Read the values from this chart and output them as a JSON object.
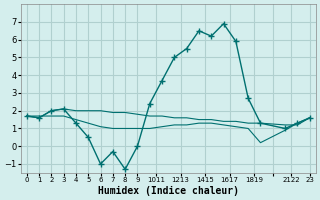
{
  "xlabel": "Humidex (Indice chaleur)",
  "background_color": "#d4eeed",
  "grid_color": "#b0d0cf",
  "line_color": "#007070",
  "xlim": [
    -0.5,
    23.5
  ],
  "ylim": [
    -1.5,
    8
  ],
  "yticks": [
    -1,
    0,
    1,
    2,
    3,
    4,
    5,
    6,
    7
  ],
  "xtick_labels": [
    "0",
    "1",
    "2",
    "3",
    "4",
    "5",
    "6",
    "7",
    "8",
    "9",
    "1011",
    "1213",
    "1415",
    "1617",
    "1819",
    "",
    "2122",
    "23"
  ],
  "xtick_positions": [
    0,
    1,
    2,
    3,
    4,
    5,
    6,
    7,
    8,
    9,
    10.5,
    12.5,
    14.5,
    16.5,
    18.5,
    20,
    21.5,
    23
  ],
  "line1_x": [
    0,
    1,
    2,
    3,
    4,
    5,
    6,
    7,
    8,
    9,
    10,
    11,
    12,
    13,
    14,
    15,
    16,
    17,
    18,
    19,
    21,
    22,
    23
  ],
  "line1_y": [
    1.7,
    1.6,
    2.0,
    2.1,
    1.3,
    0.5,
    -1.0,
    -0.3,
    -1.3,
    0.0,
    2.4,
    3.7,
    5.0,
    5.5,
    6.5,
    6.2,
    6.9,
    5.9,
    2.7,
    1.3,
    1.0,
    1.3,
    1.6
  ],
  "line2_x": [
    0,
    1,
    2,
    3,
    4,
    5,
    6,
    7,
    8,
    9,
    10,
    11,
    12,
    13,
    14,
    15,
    16,
    17,
    18,
    19,
    21,
    22,
    23
  ],
  "line2_y": [
    1.7,
    1.6,
    2.0,
    2.1,
    2.0,
    2.0,
    2.0,
    1.9,
    1.9,
    1.8,
    1.7,
    1.7,
    1.6,
    1.6,
    1.5,
    1.5,
    1.4,
    1.4,
    1.3,
    1.3,
    1.2,
    1.2,
    1.6
  ],
  "line3_x": [
    0,
    1,
    2,
    3,
    4,
    5,
    6,
    7,
    8,
    9,
    10,
    11,
    12,
    13,
    14,
    15,
    16,
    17,
    18,
    19,
    21,
    22,
    23
  ],
  "line3_y": [
    1.7,
    1.7,
    1.7,
    1.7,
    1.5,
    1.3,
    1.1,
    1.0,
    1.0,
    1.0,
    1.0,
    1.1,
    1.2,
    1.2,
    1.3,
    1.3,
    1.2,
    1.1,
    1.0,
    0.2,
    0.9,
    1.3,
    1.6
  ]
}
